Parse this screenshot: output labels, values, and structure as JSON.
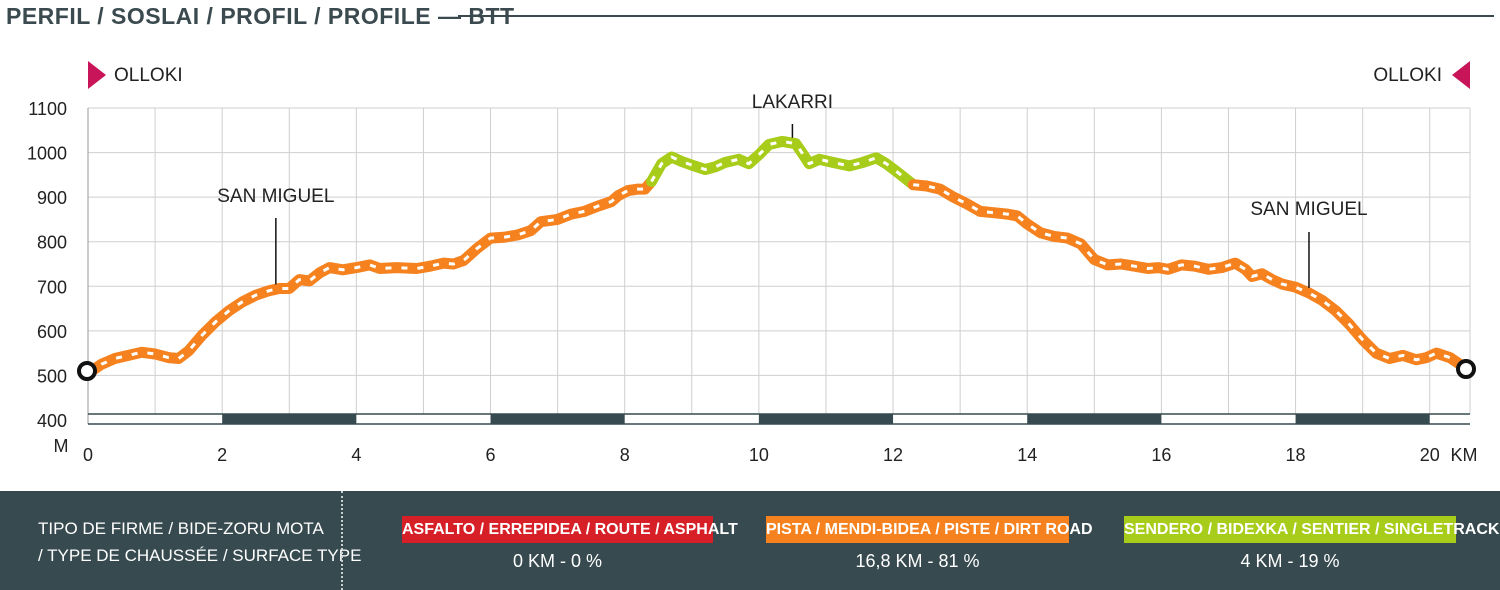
{
  "header": {
    "title": "PERFIL / SOSLAI / PROFIL / PROFILE — BTT"
  },
  "colors": {
    "asphalt": "#d61f26",
    "dirt": "#f5821f",
    "single": "#a7cc1a",
    "dark": "#374a4f",
    "endpoint_marker": "#c8155a"
  },
  "chart_data": {
    "type": "line",
    "x_unit": "KM",
    "y_unit": "M",
    "xlim": [
      0,
      20.6
    ],
    "ylim": [
      400,
      1100
    ],
    "x_ticks": [
      0,
      2,
      4,
      6,
      8,
      10,
      12,
      14,
      16,
      18,
      20
    ],
    "x_tick_labels": [
      "0",
      "2",
      "4",
      "6",
      "8",
      "10",
      "12",
      "14",
      "16",
      "18",
      "20"
    ],
    "y_ticks": [
      400,
      500,
      600,
      700,
      800,
      900,
      1000,
      1100
    ],
    "y_tick_labels": [
      "400",
      "500",
      "600",
      "700",
      "800",
      "900",
      "1000",
      "1100"
    ],
    "grid": true,
    "start_label": "OLLOKI",
    "end_label": "OLLOKI",
    "series": [
      {
        "surface": "dirt",
        "points": [
          [
            0,
            505
          ],
          [
            0.2,
            525
          ],
          [
            0.4,
            538
          ],
          [
            0.6,
            545
          ],
          [
            0.8,
            552
          ],
          [
            1.0,
            548
          ],
          [
            1.2,
            540
          ],
          [
            1.35,
            538
          ],
          [
            1.5,
            555
          ],
          [
            1.7,
            590
          ],
          [
            1.9,
            620
          ],
          [
            2.1,
            645
          ],
          [
            2.3,
            665
          ],
          [
            2.5,
            680
          ],
          [
            2.7,
            690
          ],
          [
            2.85,
            695
          ],
          [
            3.0,
            695
          ],
          [
            3.15,
            715
          ],
          [
            3.3,
            712
          ],
          [
            3.45,
            730
          ],
          [
            3.6,
            742
          ],
          [
            3.8,
            737
          ],
          [
            4.0,
            742
          ],
          [
            4.2,
            748
          ],
          [
            4.35,
            740
          ],
          [
            4.6,
            742
          ],
          [
            4.9,
            740
          ],
          [
            5.1,
            745
          ],
          [
            5.3,
            752
          ],
          [
            5.45,
            750
          ],
          [
            5.6,
            758
          ],
          [
            5.8,
            785
          ],
          [
            6.0,
            808
          ],
          [
            6.2,
            810
          ],
          [
            6.4,
            815
          ],
          [
            6.6,
            825
          ],
          [
            6.75,
            845
          ],
          [
            7.0,
            850
          ],
          [
            7.2,
            862
          ],
          [
            7.4,
            868
          ],
          [
            7.6,
            880
          ],
          [
            7.8,
            890
          ],
          [
            7.9,
            903
          ],
          [
            8.05,
            915
          ],
          [
            8.2,
            918
          ],
          [
            8.3,
            918
          ],
          [
            8.4,
            935
          ]
        ]
      },
      {
        "surface": "single",
        "points": [
          [
            8.4,
            935
          ],
          [
            8.55,
            975
          ],
          [
            8.7,
            990
          ],
          [
            8.85,
            980
          ],
          [
            9.0,
            972
          ],
          [
            9.2,
            962
          ],
          [
            9.35,
            968
          ],
          [
            9.5,
            978
          ],
          [
            9.7,
            985
          ],
          [
            9.85,
            975
          ],
          [
            10.0,
            995
          ],
          [
            10.15,
            1018
          ],
          [
            10.35,
            1025
          ],
          [
            10.55,
            1020
          ],
          [
            10.65,
            998
          ],
          [
            10.75,
            975
          ],
          [
            10.9,
            985
          ],
          [
            11.1,
            978
          ],
          [
            11.35,
            970
          ],
          [
            11.55,
            978
          ],
          [
            11.75,
            988
          ],
          [
            11.9,
            975
          ],
          [
            12.1,
            952
          ],
          [
            12.3,
            928
          ]
        ]
      },
      {
        "surface": "dirt",
        "points": [
          [
            12.3,
            928
          ],
          [
            12.5,
            925
          ],
          [
            12.7,
            918
          ],
          [
            12.9,
            900
          ],
          [
            13.1,
            885
          ],
          [
            13.3,
            868
          ],
          [
            13.5,
            865
          ],
          [
            13.7,
            862
          ],
          [
            13.85,
            858
          ],
          [
            14.0,
            840
          ],
          [
            14.2,
            820
          ],
          [
            14.4,
            812
          ],
          [
            14.6,
            808
          ],
          [
            14.8,
            795
          ],
          [
            15.0,
            760
          ],
          [
            15.2,
            748
          ],
          [
            15.4,
            750
          ],
          [
            15.6,
            745
          ],
          [
            15.8,
            740
          ],
          [
            15.95,
            742
          ],
          [
            16.1,
            738
          ],
          [
            16.3,
            748
          ],
          [
            16.5,
            745
          ],
          [
            16.7,
            738
          ],
          [
            16.9,
            742
          ],
          [
            17.1,
            752
          ],
          [
            17.25,
            738
          ],
          [
            17.35,
            722
          ],
          [
            17.5,
            728
          ],
          [
            17.65,
            715
          ],
          [
            17.8,
            705
          ],
          [
            18.0,
            698
          ],
          [
            18.2,
            685
          ],
          [
            18.4,
            668
          ],
          [
            18.6,
            645
          ],
          [
            18.8,
            615
          ],
          [
            19.0,
            580
          ],
          [
            19.2,
            550
          ],
          [
            19.4,
            538
          ],
          [
            19.6,
            545
          ],
          [
            19.8,
            535
          ],
          [
            19.95,
            540
          ],
          [
            20.1,
            550
          ],
          [
            20.3,
            540
          ],
          [
            20.45,
            525
          ],
          [
            20.6,
            512
          ]
        ]
      }
    ],
    "annotations": [
      {
        "label": "SAN MIGUEL",
        "x": 2.8,
        "y": 693
      },
      {
        "label": "LAKARRI",
        "x": 10.5,
        "y": 1022
      },
      {
        "label": "SAN MIGUEL",
        "x": 18.2,
        "y": 685
      }
    ],
    "distance_bands": [
      [
        2,
        4
      ],
      [
        6,
        8
      ],
      [
        10,
        12
      ],
      [
        14,
        16
      ],
      [
        18,
        20
      ]
    ]
  },
  "footer": {
    "surface_title": "TIPO DE FIRME / BIDE-ZORU MOTA\n/ TYPE DE CHAUSSÉE / SURFACE TYPE",
    "asphalt": {
      "label": "ASFALTO / ERREPIDEA / ROUTE / ASPHALT",
      "value": "0 KM - 0 %"
    },
    "dirt": {
      "label": "PISTA / MENDI-BIDEA / PISTE / DIRT ROAD",
      "value": "16,8 KM - 81 %"
    },
    "single": {
      "label": "SENDERO  / BIDEXKA / SENTIER / SINGLETRACK",
      "value": "4 KM - 19 %"
    }
  }
}
